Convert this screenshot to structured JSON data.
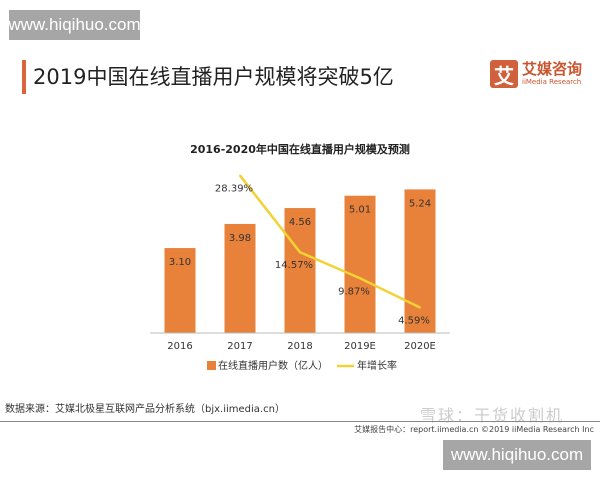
{
  "watermark_top": "www.hiqihuo.com",
  "watermark_bottom": "www.hiqihuo.com",
  "header": {
    "title": "2019中国在线直播用户规模将突破5亿"
  },
  "logo": {
    "mark": "艾",
    "name_cn": "艾媒咨询",
    "name_en": "iiMedia Research"
  },
  "source": "数据来源：艾媒北极星互联网产品分析系统（bjx.iimedia.cn）",
  "footer": "艾媒报告中心：report.iimedia.cn  ©2019  iiMedia Research  Inc",
  "overlay_watermark": "雪球：干货收割机",
  "colors": {
    "bar": "#e8813a",
    "line": "#f2d235",
    "accent": "#d9653b"
  },
  "chart_data": {
    "type": "bar+line",
    "title": "2016-2020年中国在线直播用户规模及预测",
    "categories": [
      "2016",
      "2017",
      "2018",
      "2019E",
      "2020E"
    ],
    "series": [
      {
        "name": "在线直播用户数（亿人）",
        "type": "bar",
        "values": [
          3.1,
          3.98,
          4.56,
          5.01,
          5.24
        ],
        "labels": [
          "3.10",
          "3.98",
          "4.56",
          "5.01",
          "5.24"
        ]
      },
      {
        "name": "年增长率",
        "type": "line",
        "values": [
          null,
          28.39,
          14.57,
          9.87,
          4.59
        ],
        "labels": [
          "",
          "28.39%",
          "14.57%",
          "9.87%",
          "4.59%"
        ]
      }
    ],
    "grid": false,
    "legend": "bottom"
  }
}
